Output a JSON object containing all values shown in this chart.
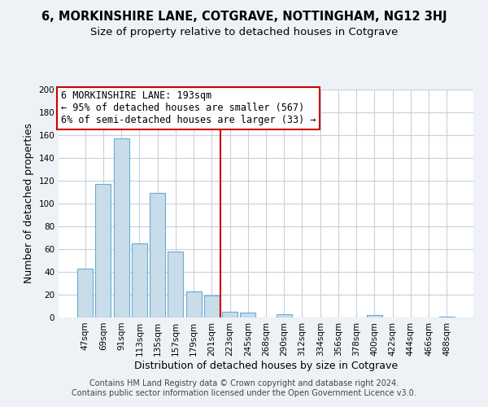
{
  "title": "6, MORKINSHIRE LANE, COTGRAVE, NOTTINGHAM, NG12 3HJ",
  "subtitle": "Size of property relative to detached houses in Cotgrave",
  "xlabel": "Distribution of detached houses by size in Cotgrave",
  "ylabel": "Number of detached properties",
  "bar_labels": [
    "47sqm",
    "69sqm",
    "91sqm",
    "113sqm",
    "135sqm",
    "157sqm",
    "179sqm",
    "201sqm",
    "223sqm",
    "245sqm",
    "268sqm",
    "290sqm",
    "312sqm",
    "334sqm",
    "356sqm",
    "378sqm",
    "400sqm",
    "422sqm",
    "444sqm",
    "466sqm",
    "488sqm"
  ],
  "bar_values": [
    43,
    117,
    157,
    65,
    109,
    58,
    23,
    19,
    5,
    4,
    0,
    3,
    0,
    0,
    0,
    0,
    2,
    0,
    0,
    0,
    1
  ],
  "bar_color": "#c8dcea",
  "bar_edge_color": "#6aabd2",
  "vline_x": 7.5,
  "vline_color": "#cc0000",
  "annotation_line1": "6 MORKINSHIRE LANE: 193sqm",
  "annotation_line2": "← 95% of detached houses are smaller (567)",
  "annotation_line3": "6% of semi-detached houses are larger (33) →",
  "annotation_box_color": "white",
  "annotation_box_edge": "#cc0000",
  "ylim": [
    0,
    200
  ],
  "yticks": [
    0,
    20,
    40,
    60,
    80,
    100,
    120,
    140,
    160,
    180,
    200
  ],
  "footer_line1": "Contains HM Land Registry data © Crown copyright and database right 2024.",
  "footer_line2": "Contains public sector information licensed under the Open Government Licence v3.0.",
  "bg_color": "#eef2f7",
  "plot_bg_color": "#ffffff",
  "grid_color": "#c8d0dc",
  "title_fontsize": 10.5,
  "subtitle_fontsize": 9.5,
  "axis_label_fontsize": 9,
  "tick_fontsize": 7.5,
  "annotation_fontsize": 8.5,
  "footer_fontsize": 7
}
